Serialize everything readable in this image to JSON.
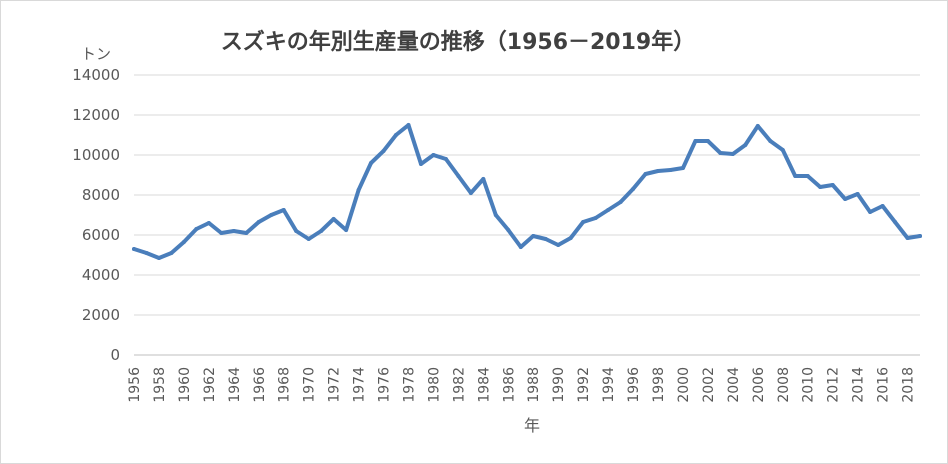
{
  "chart_data": {
    "type": "line",
    "title": "スズキの年別生産量の推移（1956－2019年）",
    "unit_label": "トン",
    "xlabel": "年",
    "ylabel": "",
    "ylim": [
      0,
      14000
    ],
    "yticks": [
      0,
      2000,
      4000,
      6000,
      8000,
      10000,
      12000,
      14000
    ],
    "ytick_labels": [
      "0",
      "2000",
      "4000",
      "6000",
      "8000",
      "10000",
      "12000",
      "14000"
    ],
    "xtick_labels": [
      "1956",
      "1958",
      "1960",
      "1962",
      "1964",
      "1966",
      "1968",
      "1970",
      "1972",
      "1974",
      "1976",
      "1978",
      "1980",
      "1982",
      "1984",
      "1986",
      "1988",
      "1990",
      "1992",
      "1994",
      "1996",
      "1998",
      "2000",
      "2002",
      "2004",
      "2006",
      "2008",
      "2010",
      "2012",
      "2014",
      "2016",
      "2018"
    ],
    "grid": true,
    "legend": "none",
    "x": [
      1956,
      1957,
      1958,
      1959,
      1960,
      1961,
      1962,
      1963,
      1964,
      1965,
      1966,
      1967,
      1968,
      1969,
      1970,
      1971,
      1972,
      1973,
      1974,
      1975,
      1976,
      1977,
      1978,
      1979,
      1980,
      1981,
      1982,
      1983,
      1984,
      1985,
      1986,
      1987,
      1988,
      1989,
      1990,
      1991,
      1992,
      1993,
      1994,
      1995,
      1996,
      1997,
      1998,
      1999,
      2000,
      2001,
      2002,
      2003,
      2004,
      2005,
      2006,
      2007,
      2008,
      2009,
      2010,
      2011,
      2012,
      2013,
      2014,
      2015,
      2016,
      2017,
      2018,
      2019
    ],
    "series": [
      {
        "values": [
          5300,
          5100,
          4850,
          5100,
          5650,
          6300,
          6600,
          6100,
          6200,
          6100,
          6650,
          7000,
          7250,
          6200,
          5800,
          6200,
          6800,
          6250,
          8250,
          9600,
          10200,
          11000,
          11500,
          9550,
          10000,
          9800,
          8950,
          8100,
          8800,
          7000,
          6250,
          5400,
          5950,
          5800,
          5500,
          5850,
          6650,
          6850,
          7250,
          7650,
          8300,
          9050,
          9200,
          9250,
          9350,
          10700,
          10700,
          10100,
          10050,
          10500,
          11450,
          10700,
          10250,
          8950,
          8950,
          8400,
          8500,
          7800,
          8050,
          7150,
          7450,
          6650,
          5850,
          5950
        ]
      }
    ]
  },
  "colors": {
    "series": "#4a7ebb",
    "grid": "#d9d9d9",
    "text": "#595959",
    "title": "#404040"
  }
}
